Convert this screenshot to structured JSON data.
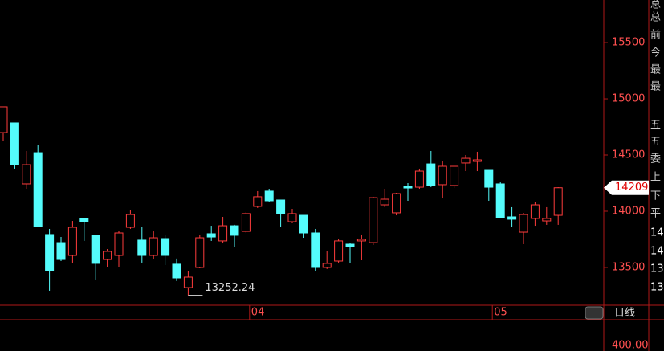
{
  "chart_data": {
    "type": "candlestick",
    "categories": [
      null,
      null,
      null,
      null,
      null,
      null,
      null,
      null,
      null,
      null,
      null,
      null,
      null,
      null,
      null,
      null,
      null,
      null,
      null,
      null,
      null,
      null,
      "04",
      null,
      null,
      null,
      null,
      null,
      null,
      null,
      null,
      null,
      null,
      null,
      null,
      null,
      null,
      null,
      null,
      null,
      null,
      null,
      null,
      "05",
      null,
      null,
      null,
      null,
      null
    ],
    "open": [
      14700,
      14786,
      14243,
      14521,
      13793,
      13721,
      13607,
      13936,
      13786,
      13571,
      13607,
      13857,
      13743,
      13607,
      13757,
      13529,
      13321,
      13500,
      13800,
      13736,
      13871,
      13821,
      14043,
      14179,
      14100,
      13907,
      13964,
      13807,
      13500,
      13557,
      13707,
      13736,
      13721,
      14057,
      13986,
      14221,
      14214,
      14421,
      14236,
      14229,
      14429,
      14443,
      14364,
      14243,
      13950,
      13814,
      13936,
      13914,
      13964
    ],
    "high": [
      14929,
      14786,
      14536,
      14593,
      13843,
      13771,
      13914,
      13936,
      13786,
      13664,
      13821,
      14007,
      13857,
      13821,
      13793,
      13579,
      13464,
      13793,
      13871,
      13950,
      13879,
      13993,
      14179,
      14200,
      14100,
      14021,
      13964,
      13843,
      13650,
      13757,
      13714,
      13793,
      14129,
      14200,
      14164,
      14250,
      14379,
      14536,
      14450,
      14400,
      14500,
      14529,
      14364,
      14257,
      14036,
      13986,
      14079,
      14036,
      14214
    ],
    "low": [
      14629,
      14379,
      14200,
      13857,
      13293,
      13557,
      13536,
      13736,
      13393,
      13500,
      13507,
      13843,
      13543,
      13571,
      13521,
      13379,
      13252.24,
      13493,
      13736,
      13714,
      13679,
      13807,
      14029,
      14079,
      13864,
      13893,
      13764,
      13464,
      13486,
      13543,
      13536,
      13564,
      13700,
      14036,
      13964,
      14093,
      14200,
      14214,
      14114,
      14207,
      14357,
      14357,
      14093,
      13936,
      13857,
      13707,
      13871,
      13879,
      13879
    ],
    "close": [
      14929,
      14414,
      14414,
      13864,
      13471,
      13571,
      13857,
      13907,
      13536,
      13643,
      13807,
      13971,
      13607,
      13764,
      13607,
      13407,
      13414,
      13764,
      13771,
      13871,
      13786,
      13979,
      14129,
      14093,
      13979,
      13979,
      13807,
      13500,
      13536,
      13736,
      13686,
      13750,
      14121,
      14107,
      14157,
      14207,
      14357,
      14229,
      14400,
      14400,
      14471,
      14457,
      14214,
      13943,
      13929,
      13971,
      14057,
      13936,
      14209
    ],
    "up_color": "#ff3c3c",
    "down_color": "#54fcfc",
    "ylim": [
      13164,
      15879
    ],
    "yticks": [
      13500,
      14000,
      14500,
      15000,
      15500
    ],
    "period_label": "日线",
    "volume_axis_label": "400.00",
    "side_panel": [
      "总",
      "总",
      "前",
      "今",
      "最",
      "最",
      "五",
      "五",
      "委",
      "上",
      "下",
      "平",
      "14",
      "14",
      "13",
      "13"
    ]
  }
}
